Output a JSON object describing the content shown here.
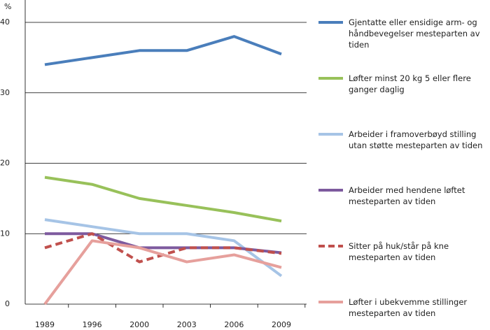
{
  "chart_data": {
    "type": "line",
    "y_label": "%",
    "categories": [
      "1989",
      "1996",
      "2000",
      "2003",
      "2006",
      "2009"
    ],
    "ylim": [
      0,
      40
    ],
    "yticks": [
      0,
      10,
      20,
      30,
      40
    ],
    "grid": true,
    "series": [
      {
        "name": "Gjentatte eller ensidige arm- og håndbevegelser mesteparten av tiden",
        "color": "#4a7ebb",
        "values": [
          34,
          35,
          36,
          36,
          38,
          35.5
        ]
      },
      {
        "name": "Løfter minst 20 kg 5 eller flere ganger daglig",
        "color": "#98c15a",
        "values": [
          18,
          17,
          15,
          14,
          13,
          11.8
        ]
      },
      {
        "name": "Arbeider i framoverbøyd stilling utan støtte mesteparten av tiden",
        "color": "#a6c4e6",
        "values": [
          12,
          11,
          10,
          10,
          9,
          4
        ]
      },
      {
        "name": "Arbeider med hendene løftet mesteparten av tiden",
        "color": "#7d5a9e",
        "values": [
          10,
          10,
          8,
          8,
          8,
          7.3
        ]
      },
      {
        "name": "Sitter på huk/står på kne mesteparten av tiden",
        "color": "#c0504d",
        "dashed": true,
        "values": [
          8,
          10,
          6,
          8,
          8,
          7.2
        ]
      },
      {
        "name": "Løfter i ubekvemme stillinger mesteparten av tiden",
        "color": "#e6a09c",
        "values": [
          0,
          9,
          8,
          6,
          7,
          5.2
        ]
      }
    ]
  }
}
